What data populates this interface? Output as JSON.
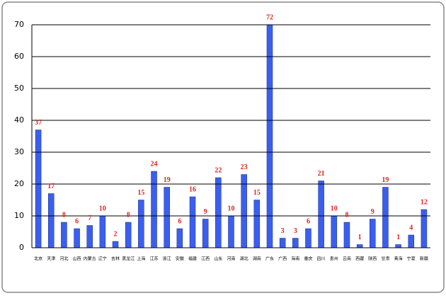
{
  "chart_data": {
    "type": "bar",
    "categories": [
      "北京",
      "天津",
      "河北",
      "山西",
      "内蒙古",
      "辽宁",
      "吉林",
      "黑龙江",
      "上海",
      "江苏",
      "浙江",
      "安徽",
      "福建",
      "江西",
      "山东",
      "河南",
      "湖北",
      "湖南",
      "广东",
      "广西",
      "海南",
      "重庆",
      "四川",
      "贵州",
      "云南",
      "西藏",
      "陕西",
      "甘肃",
      "青海",
      "宁夏",
      "新疆"
    ],
    "values": [
      37,
      17,
      8,
      6,
      7,
      10,
      2,
      8,
      15,
      24,
      19,
      6,
      16,
      9,
      22,
      10,
      23,
      15,
      72,
      3,
      3,
      6,
      21,
      10,
      8,
      1,
      9,
      19,
      1,
      4,
      12
    ],
    "color": "#3a5ff0",
    "label_color": "#e02020",
    "ylim": [
      0,
      70
    ],
    "yticks": [
      0,
      10,
      20,
      30,
      40,
      50,
      60,
      70
    ],
    "grid": true
  }
}
